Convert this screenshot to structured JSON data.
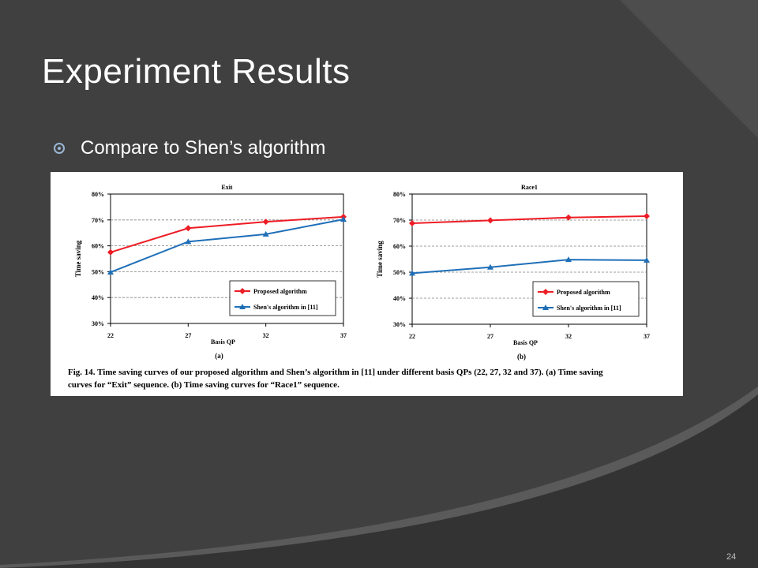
{
  "slide": {
    "title": "Experiment Results",
    "bullet": "Compare to Shen’s algorithm",
    "page_number": "24"
  },
  "figure": {
    "caption_line1": "Fig. 14. Time saving curves of our proposed algorithm and Shen’s algorithm in [11] under different basis QPs (22, 27, 32 and 37). (a) Time saving",
    "caption_line2": "curves for “Exit” sequence. (b) Time saving curves for “Race1” sequence."
  },
  "colors": {
    "background": "#404040",
    "proposed": "#ee1c24",
    "shen": "#1f6fb8"
  },
  "chart_data": [
    {
      "type": "line",
      "title": "Exit",
      "sublabel": "(a)",
      "xlabel": "Basis QP",
      "ylabel": "Time saving",
      "categories": [
        "22",
        "27",
        "32",
        "37"
      ],
      "y_ticks": [
        "30%",
        "40%",
        "50%",
        "60%",
        "70%",
        "80%"
      ],
      "ylim": [
        30,
        80
      ],
      "grid": true,
      "legend_position": "bottom-right",
      "series": [
        {
          "name": "Proposed algorithm",
          "marker": "diamond",
          "color": "#ee1c24",
          "values": [
            57.5,
            66.8,
            69.3,
            71.2
          ]
        },
        {
          "name": "Shen's algorithm in [11]",
          "marker": "triangle",
          "color": "#1f6fb8",
          "values": [
            49.8,
            61.6,
            64.5,
            70.2
          ]
        }
      ]
    },
    {
      "type": "line",
      "title": "Race1",
      "sublabel": "(b)",
      "xlabel": "Basis QP",
      "ylabel": "Time saving",
      "categories": [
        "22",
        "27",
        "32",
        "37"
      ],
      "y_ticks": [
        "30%",
        "40%",
        "50%",
        "60%",
        "70%",
        "80%"
      ],
      "ylim": [
        30,
        80
      ],
      "grid": true,
      "legend_position": "bottom-right",
      "series": [
        {
          "name": "Proposed algorithm",
          "marker": "diamond",
          "color": "#ee1c24",
          "values": [
            68.8,
            69.9,
            71.0,
            71.5
          ]
        },
        {
          "name": "Shen's algorithm in [11]",
          "marker": "triangle",
          "color": "#1f6fb8",
          "values": [
            49.6,
            51.9,
            54.8,
            54.6
          ]
        }
      ]
    }
  ]
}
